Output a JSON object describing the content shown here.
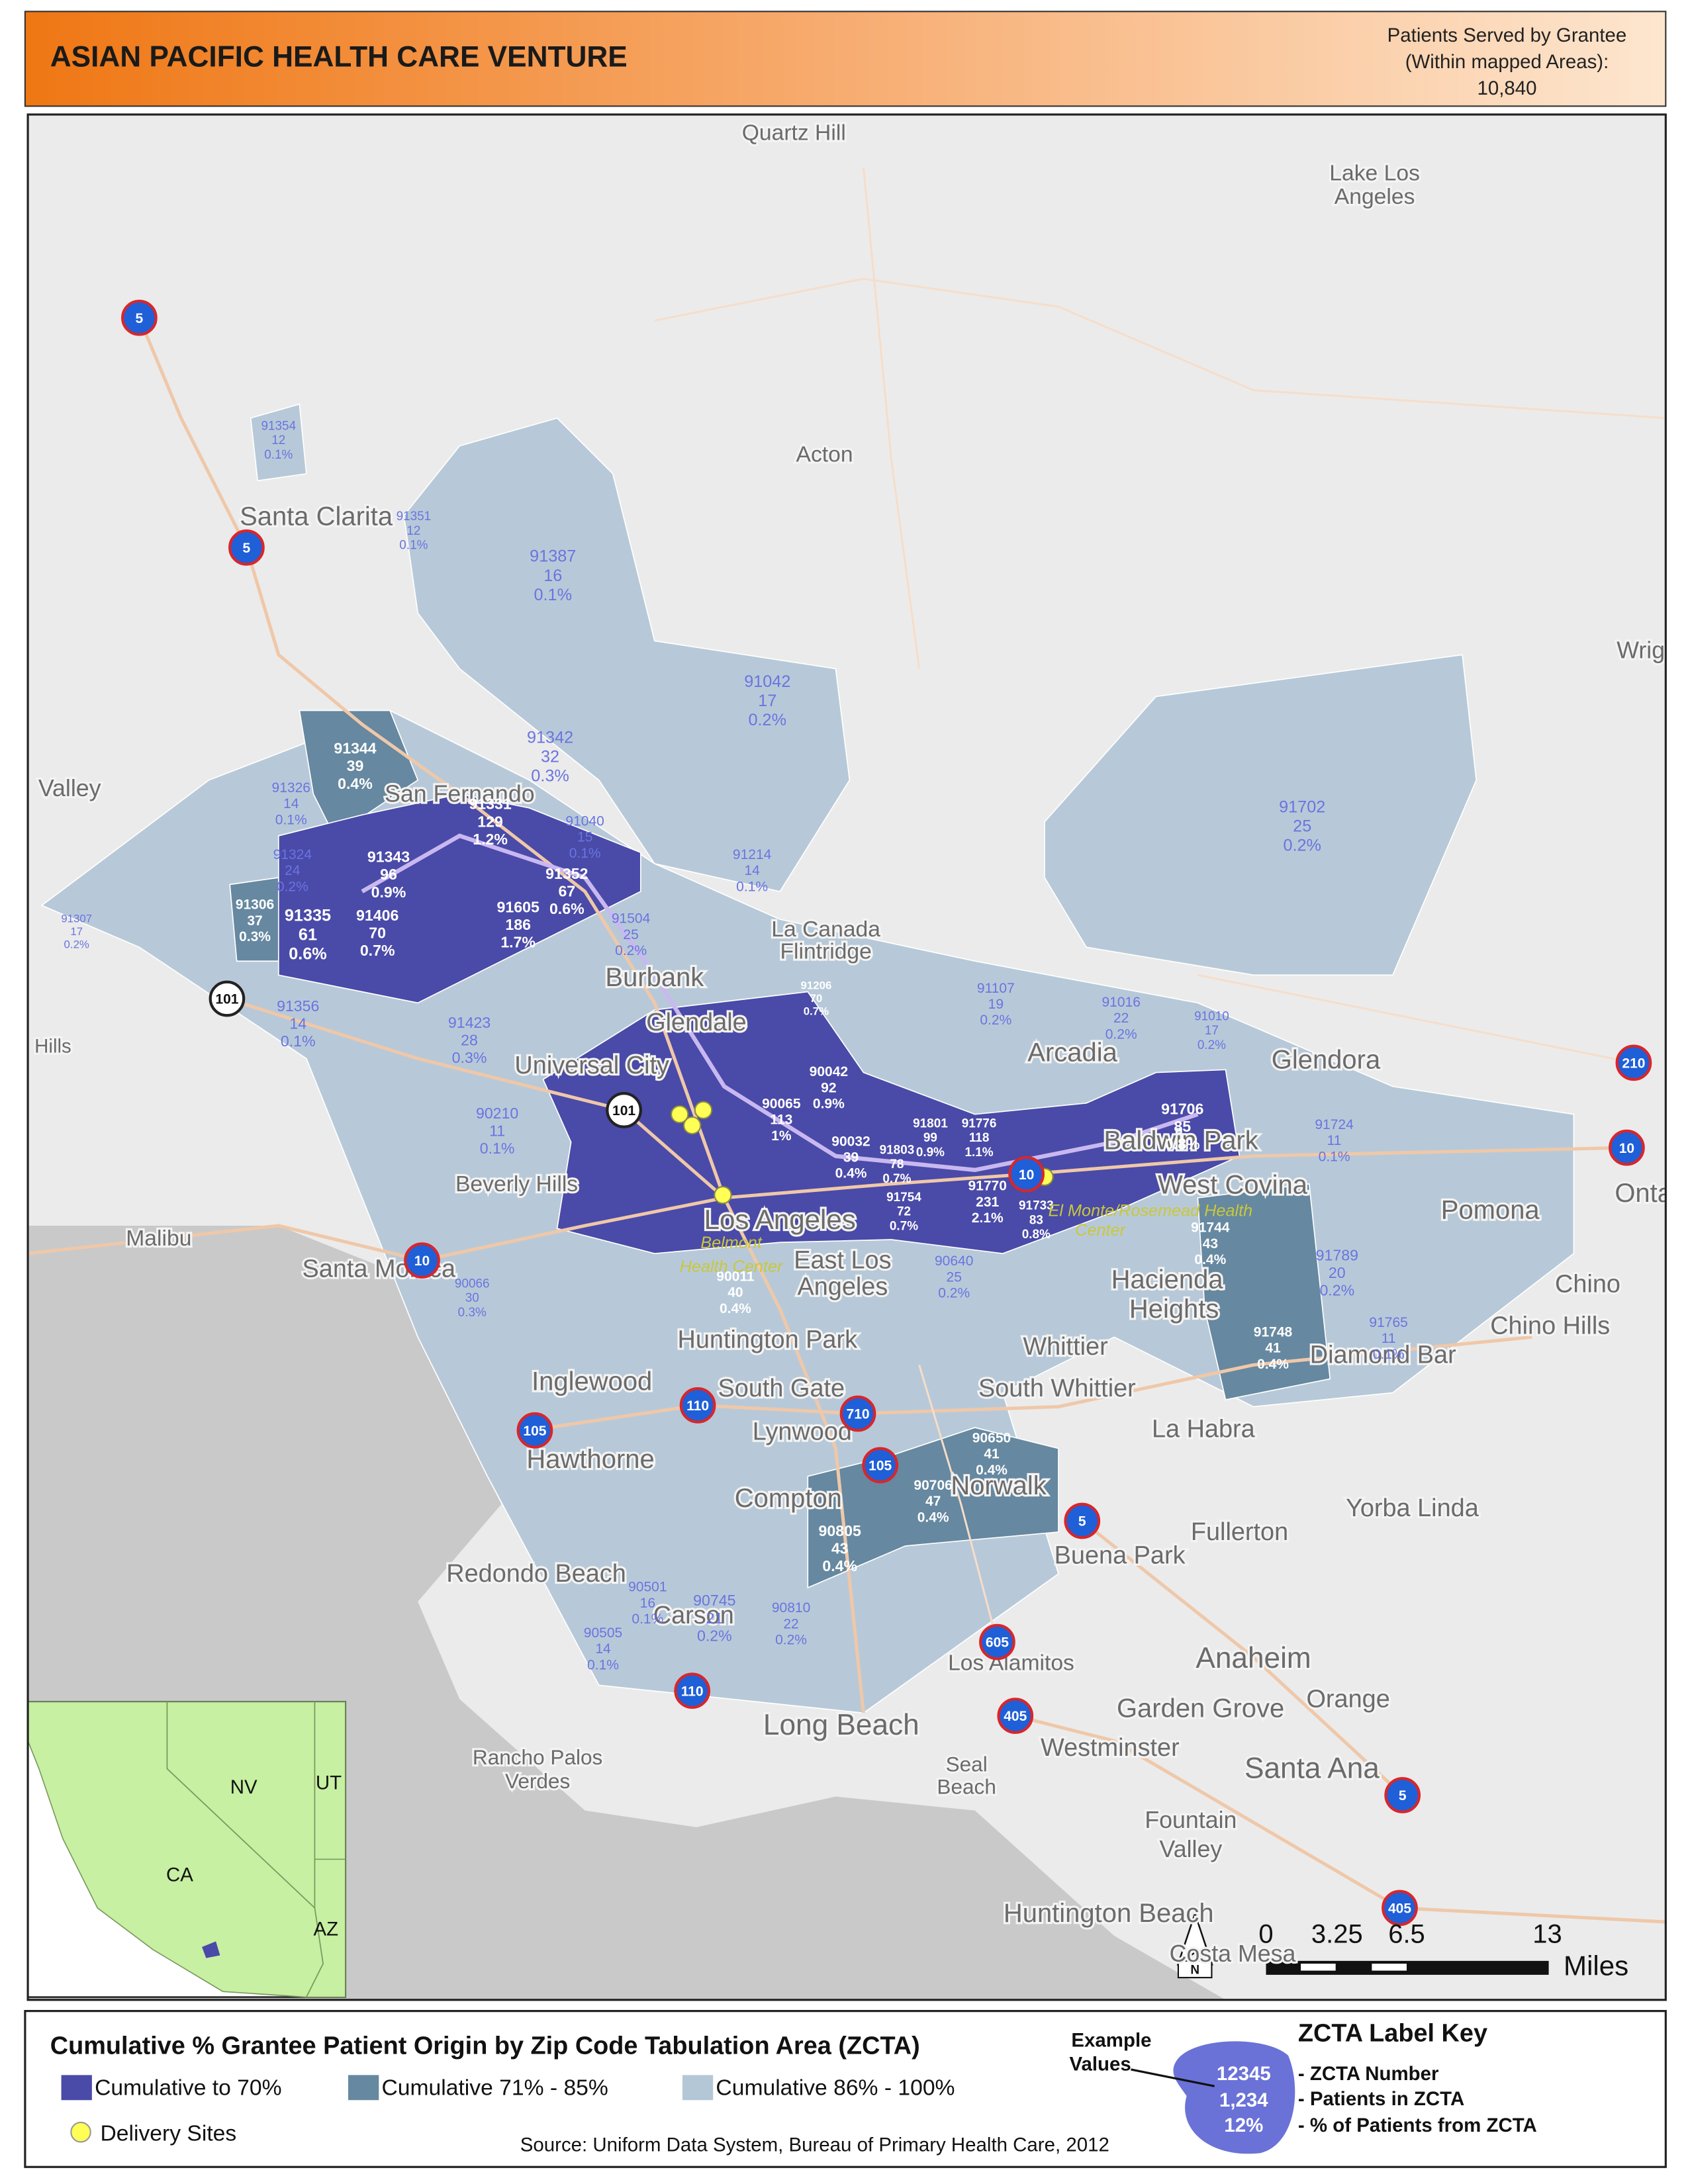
{
  "header": {
    "title": "ASIAN PACIFIC HEALTH CARE VENTURE",
    "patients_label": [
      "Patients Served by Grantee",
      "(Within mapped Areas):"
    ],
    "patients_total": "10,840"
  },
  "map": {
    "places": [
      "Quartz Hill",
      "Lake Los",
      "Angeles",
      "Acton",
      "Santa Clarita",
      "Wrigl",
      "Valley",
      "San Fernando",
      "La Canada",
      "Flintridge",
      "Burbank",
      "Glendale",
      "Universal City",
      "Hills",
      "Arcadia",
      "Glendora",
      "Baldwin Park",
      "West Covina",
      "Beverly Hills",
      "Malibu",
      "Santa Monica",
      "Los Angeles",
      "East Los",
      "Angeles",
      "Pomona",
      "Onta",
      "Chino",
      "Chino Hills",
      "Hacienda",
      "Heights",
      "Diamond Bar",
      "Whittier",
      "Huntington Park",
      "South Gate",
      "South Whittier",
      "Inglewood",
      "Lynwood",
      "La Habra",
      "Hawthorne",
      "Compton",
      "Norwalk",
      "Yorba Linda",
      "Fullerton",
      "Buena Park",
      "Redondo Beach",
      "Carson",
      "Anaheim",
      "Los Alamitos",
      "Orange",
      "Garden Grove",
      "Long Beach",
      "Westminster",
      "Seal",
      "Beach",
      "Rancho Palos",
      "Verdes",
      "Santa Ana",
      "Fountain",
      "Valley",
      "Huntington Beach",
      "Costa Mesa"
    ],
    "highways": [
      "5",
      "5",
      "101",
      "101",
      "10",
      "10",
      "210",
      "10",
      "105",
      "110",
      "710",
      "105",
      "5",
      "605",
      "110",
      "405",
      "5",
      "405"
    ],
    "zctas": [
      {
        "zip": "91354",
        "patients": "12",
        "percent": "0.1%"
      },
      {
        "zip": "91351",
        "patients": "12",
        "percent": "0.1%"
      },
      {
        "zip": "91387",
        "patients": "16",
        "percent": "0.1%"
      },
      {
        "zip": "91042",
        "patients": "17",
        "percent": "0.2%"
      },
      {
        "zip": "91342",
        "patients": "32",
        "percent": "0.3%"
      },
      {
        "zip": "91702",
        "patients": "25",
        "percent": "0.2%"
      },
      {
        "zip": "91040",
        "patients": "15",
        "percent": "0.1%"
      },
      {
        "zip": "91214",
        "patients": "14",
        "percent": "0.1%"
      },
      {
        "zip": "91326",
        "patients": "14",
        "percent": "0.1%"
      },
      {
        "zip": "91324",
        "patients": "24",
        "percent": "0.2%"
      },
      {
        "zip": "91307",
        "patients": "17",
        "percent": "0.2%"
      },
      {
        "zip": "91504",
        "patients": "25",
        "percent": "0.2%"
      },
      {
        "zip": "91356",
        "patients": "14",
        "percent": "0.1%"
      },
      {
        "zip": "91423",
        "patients": "28",
        "percent": "0.3%"
      },
      {
        "zip": "91107",
        "patients": "19",
        "percent": "0.2%"
      },
      {
        "zip": "91016",
        "patients": "22",
        "percent": "0.2%"
      },
      {
        "zip": "91010",
        "patients": "17",
        "percent": "0.2%"
      },
      {
        "zip": "90210",
        "patients": "11",
        "percent": "0.1%"
      },
      {
        "zip": "91724",
        "patients": "11",
        "percent": "0.1%"
      },
      {
        "zip": "90066",
        "patients": "30",
        "percent": "0.3%"
      },
      {
        "zip": "91789",
        "patients": "20",
        "percent": "0.2%"
      },
      {
        "zip": "91765",
        "patients": "11",
        "percent": "0.1%"
      },
      {
        "zip": "90640",
        "patients": "25",
        "percent": "0.2%"
      },
      {
        "zip": "90810",
        "patients": "22",
        "percent": "0.2%"
      },
      {
        "zip": "90501",
        "patients": "16",
        "percent": "0.1%"
      },
      {
        "zip": "90505",
        "patients": "14",
        "percent": "0.1%"
      },
      {
        "zip": "90745",
        "patients": "21",
        "percent": "0.2%"
      },
      {
        "zip": "91344",
        "patients": "39",
        "percent": "0.4%"
      },
      {
        "zip": "91331",
        "patients": "129",
        "percent": "1.2%"
      },
      {
        "zip": "91343",
        "patients": "96",
        "percent": "0.9%"
      },
      {
        "zip": "91352",
        "patients": "67",
        "percent": "0.6%"
      },
      {
        "zip": "91335",
        "patients": "61",
        "percent": "0.6%"
      },
      {
        "zip": "91406",
        "patients": "70",
        "percent": "0.7%"
      },
      {
        "zip": "91605",
        "patients": "186",
        "percent": "1.7%"
      },
      {
        "zip": "91306",
        "patients": "37",
        "percent": "0.3%"
      },
      {
        "zip": "91706",
        "patients": "85",
        "percent": "0.8%"
      },
      {
        "zip": "91744",
        "patients": "43",
        "percent": "0.4%"
      },
      {
        "zip": "91748",
        "patients": "41",
        "percent": "0.4%"
      },
      {
        "zip": "90650",
        "patients": "41",
        "percent": "0.4%"
      },
      {
        "zip": "90706",
        "patients": "47",
        "percent": "0.4%"
      },
      {
        "zip": "90805",
        "patients": "43",
        "percent": "0.4%"
      },
      {
        "zip": "90065",
        "patients": "113",
        "percent": "1%"
      },
      {
        "zip": "90042",
        "patients": "92",
        "percent": "0.9%"
      },
      {
        "zip": "91770",
        "patients": "231",
        "percent": "2.1%"
      },
      {
        "zip": "91754",
        "patients": "72",
        "percent": "0.7%"
      },
      {
        "zip": "91733",
        "patients": "83",
        "percent": "0.8%"
      },
      {
        "zip": "91801",
        "patients": "99",
        "percent": "0.9%"
      },
      {
        "zip": "91776",
        "patients": "118",
        "percent": "1.1%"
      },
      {
        "zip": "90032",
        "patients": "39",
        "percent": "0.4%"
      },
      {
        "zip": "91206",
        "patients": "70",
        "percent": "0.7%"
      },
      {
        "zip": "90011",
        "patients": "40",
        "percent": "0.4%"
      },
      {
        "zip": "91803",
        "patients": "78",
        "percent": "0.7%"
      }
    ],
    "site_labels": [
      "Belmont",
      "Health Center",
      "El Monte/Rosemead Health",
      "Center"
    ],
    "inset_labels": [
      "NV",
      "UT",
      "CA",
      "AZ"
    ],
    "scale": {
      "ticks": [
        "0",
        "3.25",
        "6.5",
        "13"
      ],
      "unit": "Miles"
    },
    "north": "N"
  },
  "legend": {
    "title": "Cumulative % Grantee Patient Origin by Zip Code Tabulation Area (ZCTA)",
    "items": [
      {
        "label": "Cumulative to 70%",
        "color": "#4a4aa8"
      },
      {
        "label": "Cumulative 71% - 85%",
        "color": "#6688a0"
      },
      {
        "label": "Cumulative 86% - 100%",
        "color": "#b4c7d7"
      }
    ],
    "sites_label": "Delivery Sites",
    "source": "Source: Uniform Data System, Bureau of Primary Health Care, 2012",
    "example_label": [
      "Example",
      "Values"
    ],
    "example_values": [
      "12345",
      "1,234",
      "12%"
    ],
    "key_title": "ZCTA Label Key",
    "key_lines": [
      "- ZCTA Number",
      "- Patients in ZCTA",
      "- % of Patients from ZCTA"
    ]
  }
}
